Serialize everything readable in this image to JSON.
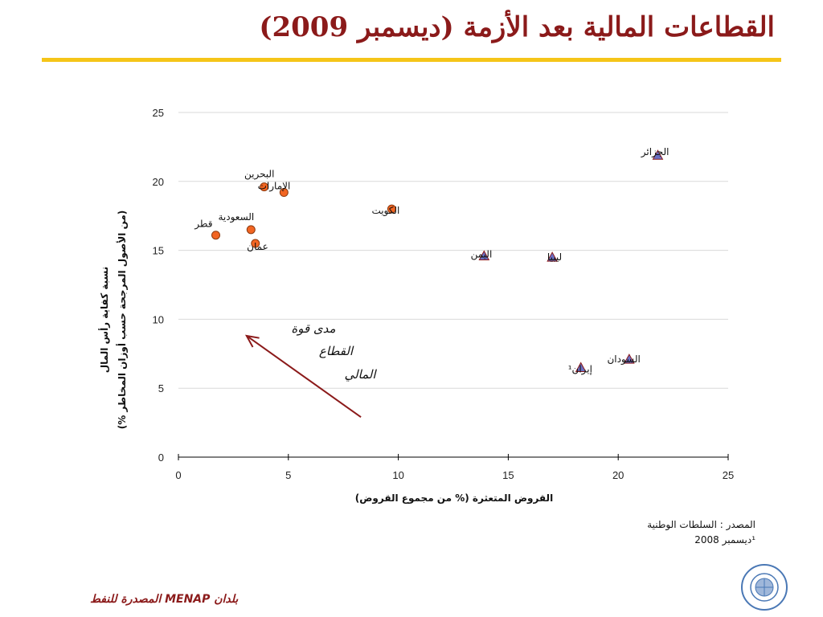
{
  "slide": {
    "title": "القطاعات المالية بعد الأزمة (ديسمبر 2009)",
    "footer": "بلدان  MENAP المصدرة للنفط",
    "source_line1": "المصدر : السلطات الوطنية",
    "source_line2": "¹ديسمبر 2008"
  },
  "colors": {
    "title": "#8b1a1a",
    "rule": "#f5c518",
    "circle_fill": "#f26522",
    "circle_stroke": "#8b3a0f",
    "triangle_fill": "#6a6fc4",
    "triangle_stroke": "#8b1a1a",
    "arrow": "#8b1a1a"
  },
  "chart_data": {
    "type": "scatter",
    "xlabel": "القروض المتعثرة (% من مجموع القروض)",
    "ylabel_line1": "نسبة كفاية رأس المال",
    "ylabel_line2": "(من الأصول المرجحة حسب أوزان المخاطر %)",
    "xlim": [
      0,
      25
    ],
    "ylim": [
      0,
      25
    ],
    "xticks": [
      0,
      5,
      10,
      15,
      20,
      25
    ],
    "yticks": [
      0,
      5,
      10,
      15,
      20,
      25
    ],
    "grid": "horizontal",
    "series": [
      {
        "marker": "circle",
        "points": [
          {
            "label": "البحرين",
            "x": 3.9,
            "y": 19.6
          },
          {
            "label": "الإمارات",
            "x": 4.8,
            "y": 19.2
          },
          {
            "label": "السعودية",
            "x": 3.3,
            "y": 16.5
          },
          {
            "label": "قطر",
            "x": 1.7,
            "y": 16.1
          },
          {
            "label": "عمان",
            "x": 3.5,
            "y": 15.5
          },
          {
            "label": "الكويت",
            "x": 9.7,
            "y": 18.0
          }
        ]
      },
      {
        "marker": "triangle",
        "points": [
          {
            "label": "الجزائر",
            "x": 21.8,
            "y": 21.9
          },
          {
            "label": "اليمن",
            "x": 13.9,
            "y": 14.6
          },
          {
            "label": "ليبيا",
            "x": 17.0,
            "y": 14.5
          },
          {
            "label": "السودان",
            "x": 20.5,
            "y": 7.1
          },
          {
            "label": "إيران¹",
            "x": 18.3,
            "y": 6.5
          }
        ]
      }
    ],
    "annotation": {
      "lines": [
        "مدى قوة",
        "القطاع",
        "المالي"
      ],
      "arrow_from": [
        8.3,
        2.9
      ],
      "arrow_to": [
        3.1,
        8.8
      ]
    }
  }
}
